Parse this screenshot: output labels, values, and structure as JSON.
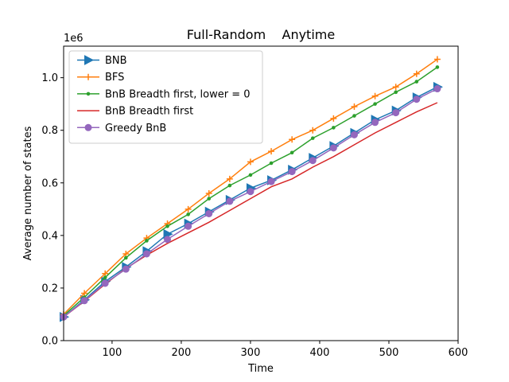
{
  "chart_data": {
    "type": "line",
    "title": "Full-Random    Anytime",
    "xlabel": "Time",
    "ylabel": "Average number of states",
    "y_offset_label": "1e6",
    "xlim": [
      30,
      600
    ],
    "ylim": [
      0,
      1.12
    ],
    "x_ticks": [
      100,
      200,
      300,
      400,
      500,
      600
    ],
    "y_ticks": [
      0.0,
      0.2,
      0.4,
      0.6,
      0.8,
      1.0
    ],
    "x_tick_labels": [
      "100",
      "200",
      "300",
      "400",
      "500",
      "600"
    ],
    "y_tick_labels": [
      "0.0",
      "0.2",
      "0.4",
      "0.6",
      "0.8",
      "1.0"
    ],
    "grid": false,
    "legend_position": "upper-left",
    "x": [
      30,
      60,
      90,
      120,
      150,
      180,
      210,
      240,
      270,
      300,
      330,
      360,
      390,
      420,
      450,
      480,
      510,
      540,
      570
    ],
    "series": [
      {
        "name": "BNB",
        "color": "#1f77b4",
        "marker": "triangle-right",
        "values": [
          0.09,
          0.155,
          0.225,
          0.28,
          0.34,
          0.405,
          0.445,
          0.49,
          0.535,
          0.58,
          0.61,
          0.65,
          0.695,
          0.74,
          0.79,
          0.84,
          0.875,
          0.925,
          0.965
        ]
      },
      {
        "name": "BFS",
        "color": "#ff7f0e",
        "marker": "plus",
        "values": [
          0.1,
          0.18,
          0.255,
          0.33,
          0.39,
          0.445,
          0.5,
          0.56,
          0.615,
          0.68,
          0.72,
          0.765,
          0.8,
          0.845,
          0.89,
          0.93,
          0.965,
          1.015,
          1.07
        ]
      },
      {
        "name": "BnB Breadth first, lower = 0",
        "color": "#2ca02c",
        "marker": "dot",
        "values": [
          0.095,
          0.165,
          0.24,
          0.315,
          0.38,
          0.435,
          0.48,
          0.54,
          0.59,
          0.63,
          0.675,
          0.715,
          0.77,
          0.81,
          0.855,
          0.9,
          0.945,
          0.985,
          1.04
        ]
      },
      {
        "name": "BnB Breadth first",
        "color": "#d62728",
        "marker": "none",
        "values": [
          0.09,
          0.15,
          0.215,
          0.275,
          0.325,
          0.37,
          0.41,
          0.45,
          0.495,
          0.54,
          0.585,
          0.615,
          0.66,
          0.7,
          0.745,
          0.79,
          0.83,
          0.87,
          0.905
        ]
      },
      {
        "name": "Greedy BnB",
        "color": "#9467bd",
        "marker": "circle",
        "values": [
          0.09,
          0.152,
          0.218,
          0.272,
          0.33,
          0.385,
          0.435,
          0.483,
          0.53,
          0.567,
          0.605,
          0.643,
          0.685,
          0.733,
          0.783,
          0.83,
          0.867,
          0.918,
          0.958
        ]
      }
    ]
  }
}
